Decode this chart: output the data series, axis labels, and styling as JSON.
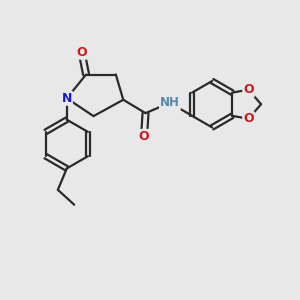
{
  "bg_color": "#e8e8e8",
  "bond_color": "#2a2a2a",
  "bond_width": 1.6,
  "N_color": "#1a1acc",
  "O_color": "#cc1a1a",
  "H_color": "#5588aa",
  "figsize": [
    3.0,
    3.0
  ],
  "dpi": 100,
  "xlim": [
    0,
    10
  ],
  "ylim": [
    0,
    10
  ]
}
